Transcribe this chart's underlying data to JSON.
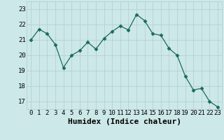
{
  "x": [
    0,
    1,
    2,
    3,
    4,
    5,
    6,
    7,
    8,
    9,
    10,
    11,
    12,
    13,
    14,
    15,
    16,
    17,
    18,
    19,
    20,
    21,
    22,
    23
  ],
  "y": [
    21.0,
    21.7,
    21.4,
    20.7,
    19.2,
    20.0,
    20.3,
    20.85,
    20.4,
    21.1,
    21.55,
    21.9,
    21.65,
    22.65,
    22.25,
    21.4,
    21.3,
    20.45,
    20.0,
    18.65,
    17.75,
    17.85,
    17.0,
    16.65
  ],
  "line_color": "#1a6b5a",
  "marker": "D",
  "markersize": 2.5,
  "linewidth": 0.9,
  "bg_color": "#cde8e8",
  "grid_color": "#b0cccc",
  "xlabel": "Humidex (Indice chaleur)",
  "xlabel_fontsize": 8,
  "tick_fontsize": 6.5,
  "ylim": [
    16.5,
    23.5
  ],
  "yticks": [
    17,
    18,
    19,
    20,
    21,
    22,
    23
  ],
  "xticks": [
    0,
    1,
    2,
    3,
    4,
    5,
    6,
    7,
    8,
    9,
    10,
    11,
    12,
    13,
    14,
    15,
    16,
    17,
    18,
    19,
    20,
    21,
    22,
    23
  ],
  "xlim": [
    -0.5,
    23.5
  ]
}
